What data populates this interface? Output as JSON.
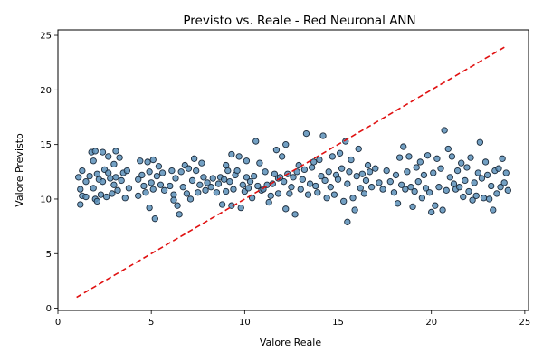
{
  "chart_data": {
    "type": "scatter",
    "title": "Previsto vs. Reale - Red Neuronal ANN",
    "xlabel": "Valore Reale",
    "ylabel": "Valore Previsto",
    "xlim": [
      0,
      25.2
    ],
    "ylim": [
      -0.2,
      25.5
    ],
    "xticks": [
      "0",
      "5",
      "10",
      "15",
      "20",
      "25"
    ],
    "yticks": [
      "0",
      "5",
      "10",
      "15",
      "20",
      "25"
    ],
    "grid": false,
    "colors": {
      "point_fill": "#5b8fb8",
      "point_edge": "#1b2a3a",
      "reference_line": "#e01010"
    },
    "reference_line": {
      "x": [
        1.0,
        24.0
      ],
      "y": [
        1.0,
        24.0
      ],
      "style": "dashed"
    },
    "series": [
      {
        "points": [
          [
            1.1,
            12.0
          ],
          [
            1.2,
            9.5
          ],
          [
            1.2,
            10.9
          ],
          [
            1.3,
            12.6
          ],
          [
            1.3,
            10.3
          ],
          [
            1.5,
            11.6
          ],
          [
            1.5,
            10.2
          ],
          [
            1.7,
            12.1
          ],
          [
            1.8,
            14.3
          ],
          [
            1.9,
            13.5
          ],
          [
            1.9,
            11.0
          ],
          [
            2.0,
            14.4
          ],
          [
            2.0,
            10.0
          ],
          [
            2.1,
            12.3
          ],
          [
            2.1,
            9.8
          ],
          [
            2.2,
            11.8
          ],
          [
            2.3,
            10.4
          ],
          [
            2.4,
            14.3
          ],
          [
            2.4,
            11.6
          ],
          [
            2.5,
            12.7
          ],
          [
            2.6,
            10.2
          ],
          [
            2.7,
            12.4
          ],
          [
            2.7,
            13.9
          ],
          [
            2.8,
            11.9
          ],
          [
            2.9,
            10.5
          ],
          [
            3.0,
            13.2
          ],
          [
            3.0,
            11.3
          ],
          [
            3.1,
            14.4
          ],
          [
            3.1,
            12.0
          ],
          [
            3.2,
            10.8
          ],
          [
            3.3,
            13.8
          ],
          [
            3.4,
            11.7
          ],
          [
            3.5,
            12.4
          ],
          [
            3.6,
            10.1
          ],
          [
            3.7,
            12.6
          ],
          [
            3.8,
            11.0
          ],
          [
            4.3,
            11.8
          ],
          [
            4.3,
            10.3
          ],
          [
            4.4,
            13.5
          ],
          [
            4.5,
            12.2
          ],
          [
            4.6,
            11.2
          ],
          [
            4.7,
            10.6
          ],
          [
            4.8,
            13.4
          ],
          [
            4.9,
            9.2
          ],
          [
            4.9,
            12.5
          ],
          [
            5.0,
            11.5
          ],
          [
            5.1,
            10.9
          ],
          [
            5.1,
            13.6
          ],
          [
            5.2,
            8.2
          ],
          [
            5.3,
            12.1
          ],
          [
            5.4,
            13.0
          ],
          [
            5.5,
            11.3
          ],
          [
            5.6,
            12.4
          ],
          [
            5.7,
            10.8
          ],
          [
            6.0,
            11.2
          ],
          [
            6.1,
            12.6
          ],
          [
            6.2,
            10.4
          ],
          [
            6.2,
            9.9
          ],
          [
            6.3,
            11.9
          ],
          [
            6.4,
            9.4
          ],
          [
            6.5,
            8.6
          ],
          [
            6.6,
            12.5
          ],
          [
            6.7,
            11.1
          ],
          [
            6.8,
            13.1
          ],
          [
            6.9,
            10.5
          ],
          [
            7.0,
            12.8
          ],
          [
            7.1,
            10.0
          ],
          [
            7.2,
            11.7
          ],
          [
            7.3,
            13.7
          ],
          [
            7.4,
            12.6
          ],
          [
            7.5,
            10.6
          ],
          [
            7.6,
            11.3
          ],
          [
            7.7,
            13.3
          ],
          [
            7.8,
            12.0
          ],
          [
            7.9,
            10.8
          ],
          [
            8.0,
            11.5
          ],
          [
            8.2,
            11.1
          ],
          [
            8.3,
            11.9
          ],
          [
            8.5,
            10.6
          ],
          [
            8.6,
            11.4
          ],
          [
            8.7,
            12.0
          ],
          [
            8.8,
            9.5
          ],
          [
            8.9,
            11.8
          ],
          [
            9.0,
            13.1
          ],
          [
            9.0,
            10.7
          ],
          [
            9.1,
            12.6
          ],
          [
            9.2,
            11.6
          ],
          [
            9.3,
            14.1
          ],
          [
            9.3,
            9.4
          ],
          [
            9.4,
            10.9
          ],
          [
            9.5,
            12.2
          ],
          [
            9.6,
            12.6
          ],
          [
            9.7,
            13.9
          ],
          [
            9.8,
            9.2
          ],
          [
            9.9,
            11.3
          ],
          [
            10.0,
            10.7
          ],
          [
            10.1,
            12.0
          ],
          [
            10.1,
            13.5
          ],
          [
            10.2,
            11.0
          ],
          [
            10.3,
            11.6
          ],
          [
            10.4,
            10.1
          ],
          [
            10.5,
            12.1
          ],
          [
            10.6,
            15.3
          ],
          [
            10.7,
            11.2
          ],
          [
            10.8,
            13.3
          ],
          [
            10.9,
            10.8
          ],
          [
            11.0,
            10.9
          ],
          [
            11.1,
            12.5
          ],
          [
            11.2,
            11.3
          ],
          [
            11.3,
            9.7
          ],
          [
            11.4,
            10.3
          ],
          [
            11.5,
            11.4
          ],
          [
            11.6,
            12.3
          ],
          [
            11.7,
            14.5
          ],
          [
            11.8,
            11.9
          ],
          [
            11.8,
            10.5
          ],
          [
            11.9,
            12.0
          ],
          [
            12.0,
            13.9
          ],
          [
            12.1,
            11.6
          ],
          [
            12.2,
            9.1
          ],
          [
            12.2,
            15.0
          ],
          [
            12.3,
            12.3
          ],
          [
            12.4,
            10.5
          ],
          [
            12.5,
            11.1
          ],
          [
            12.6,
            12.0
          ],
          [
            12.7,
            8.6
          ],
          [
            12.8,
            12.5
          ],
          [
            12.9,
            13.1
          ],
          [
            13.0,
            10.9
          ],
          [
            13.1,
            11.8
          ],
          [
            13.2,
            12.7
          ],
          [
            13.3,
            16.0
          ],
          [
            13.4,
            10.4
          ],
          [
            13.5,
            11.4
          ],
          [
            13.6,
            12.9
          ],
          [
            13.7,
            13.4
          ],
          [
            13.8,
            11.2
          ],
          [
            13.9,
            10.6
          ],
          [
            14.0,
            13.6
          ],
          [
            14.1,
            12.1
          ],
          [
            14.2,
            15.8
          ],
          [
            14.3,
            11.7
          ],
          [
            14.4,
            10.1
          ],
          [
            14.5,
            12.5
          ],
          [
            14.6,
            11.1
          ],
          [
            14.7,
            13.9
          ],
          [
            14.8,
            10.4
          ],
          [
            14.9,
            12.2
          ],
          [
            15.0,
            11.8
          ],
          [
            15.1,
            14.2
          ],
          [
            15.2,
            12.8
          ],
          [
            15.3,
            9.8
          ],
          [
            15.4,
            15.3
          ],
          [
            15.5,
            11.4
          ],
          [
            15.5,
            7.9
          ],
          [
            15.6,
            12.5
          ],
          [
            15.7,
            13.6
          ],
          [
            15.8,
            10.1
          ],
          [
            15.9,
            9.0
          ],
          [
            16.0,
            12.1
          ],
          [
            16.1,
            14.6
          ],
          [
            16.2,
            11.0
          ],
          [
            16.3,
            12.3
          ],
          [
            16.4,
            10.5
          ],
          [
            16.5,
            11.7
          ],
          [
            16.6,
            13.1
          ],
          [
            16.7,
            12.5
          ],
          [
            16.8,
            11.1
          ],
          [
            17.0,
            12.8
          ],
          [
            17.2,
            11.5
          ],
          [
            17.4,
            10.9
          ],
          [
            17.6,
            12.6
          ],
          [
            17.8,
            11.6
          ],
          [
            18.0,
            10.6
          ],
          [
            18.1,
            12.2
          ],
          [
            18.2,
            9.6
          ],
          [
            18.3,
            13.8
          ],
          [
            18.4,
            11.3
          ],
          [
            18.5,
            14.8
          ],
          [
            18.6,
            10.9
          ],
          [
            18.7,
            12.5
          ],
          [
            18.8,
            13.9
          ],
          [
            18.9,
            11.1
          ],
          [
            19.0,
            9.3
          ],
          [
            19.1,
            10.7
          ],
          [
            19.2,
            12.9
          ],
          [
            19.3,
            11.6
          ],
          [
            19.4,
            13.4
          ],
          [
            19.5,
            10.1
          ],
          [
            19.6,
            12.2
          ],
          [
            19.7,
            11.0
          ],
          [
            19.8,
            14.0
          ],
          [
            19.9,
            10.6
          ],
          [
            20.0,
            8.8
          ],
          [
            20.1,
            12.4
          ],
          [
            20.2,
            9.4
          ],
          [
            20.3,
            13.7
          ],
          [
            20.4,
            11.1
          ],
          [
            20.5,
            12.8
          ],
          [
            20.6,
            9.0
          ],
          [
            20.7,
            16.3
          ],
          [
            20.8,
            10.8
          ],
          [
            20.9,
            14.6
          ],
          [
            21.0,
            12.0
          ],
          [
            21.1,
            13.9
          ],
          [
            21.2,
            11.4
          ],
          [
            21.3,
            10.9
          ],
          [
            21.4,
            12.6
          ],
          [
            21.5,
            11.1
          ],
          [
            21.6,
            13.3
          ],
          [
            21.7,
            10.2
          ],
          [
            21.8,
            11.7
          ],
          [
            21.9,
            12.9
          ],
          [
            22.0,
            10.7
          ],
          [
            22.1,
            13.8
          ],
          [
            22.2,
            9.9
          ],
          [
            22.3,
            11.5
          ],
          [
            22.4,
            10.3
          ],
          [
            22.5,
            12.4
          ],
          [
            22.6,
            15.2
          ],
          [
            22.7,
            11.9
          ],
          [
            22.8,
            10.1
          ],
          [
            22.9,
            13.4
          ],
          [
            23.0,
            12.2
          ],
          [
            23.1,
            10.0
          ],
          [
            23.2,
            11.2
          ],
          [
            23.3,
            9.0
          ],
          [
            23.4,
            12.6
          ],
          [
            23.5,
            10.5
          ],
          [
            23.6,
            12.8
          ],
          [
            23.7,
            11.1
          ],
          [
            23.8,
            13.7
          ],
          [
            23.9,
            11.5
          ],
          [
            24.0,
            12.4
          ],
          [
            24.1,
            10.8
          ]
        ]
      }
    ]
  }
}
